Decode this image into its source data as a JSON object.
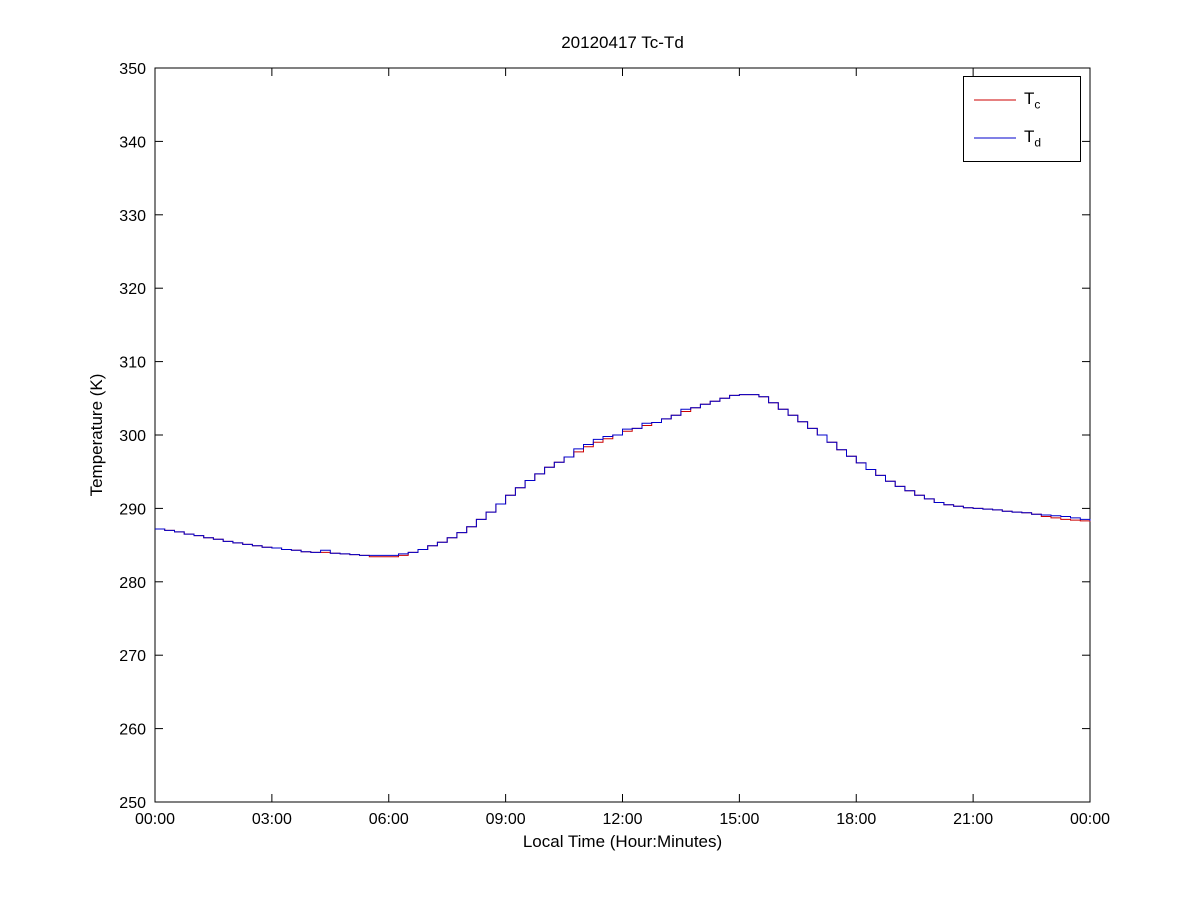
{
  "figure": {
    "title": "20120417 Tc-Td",
    "xlabel": "Local Time (Hour:Minutes)",
    "ylabel": "Temperature (K)"
  },
  "chart_data": {
    "type": "line",
    "title": "20120417 Tc-Td",
    "xlabel": "Local Time (Hour:Minutes)",
    "ylabel": "Temperature (K)",
    "xlim": [
      0,
      24
    ],
    "ylim": [
      250,
      350
    ],
    "grid": false,
    "legend_position": "top-right",
    "xtick_positions": [
      0,
      3,
      6,
      9,
      12,
      15,
      18,
      21,
      24
    ],
    "xtick_labels": [
      "00:00",
      "03:00",
      "06:00",
      "09:00",
      "12:00",
      "15:00",
      "18:00",
      "21:00",
      "00:00"
    ],
    "ytick_positions": [
      250,
      260,
      270,
      280,
      290,
      300,
      310,
      320,
      330,
      340,
      350
    ],
    "ytick_labels": [
      "250",
      "260",
      "270",
      "280",
      "290",
      "300",
      "310",
      "320",
      "330",
      "340",
      "350"
    ],
    "x_hours": [
      0,
      0.25,
      0.5,
      0.75,
      1,
      1.25,
      1.5,
      1.75,
      2,
      2.25,
      2.5,
      2.75,
      3,
      3.25,
      3.5,
      3.75,
      4,
      4.25,
      4.5,
      4.75,
      5,
      5.25,
      5.5,
      5.75,
      6,
      6.25,
      6.5,
      6.75,
      7,
      7.25,
      7.5,
      7.75,
      8,
      8.25,
      8.5,
      8.75,
      9,
      9.25,
      9.5,
      9.75,
      10,
      10.25,
      10.5,
      10.75,
      11,
      11.25,
      11.5,
      11.75,
      12,
      12.25,
      12.5,
      12.75,
      13,
      13.25,
      13.5,
      13.75,
      14,
      14.25,
      14.5,
      14.75,
      15,
      15.25,
      15.5,
      15.75,
      16,
      16.25,
      16.5,
      16.75,
      17,
      17.25,
      17.5,
      17.75,
      18,
      18.25,
      18.5,
      18.75,
      19,
      19.25,
      19.5,
      19.75,
      20,
      20.25,
      20.5,
      20.75,
      21,
      21.25,
      21.5,
      21.75,
      22,
      22.25,
      22.5,
      22.75,
      23,
      23.25,
      23.5,
      23.75,
      24
    ],
    "series": [
      {
        "name": "Tc",
        "label_main": "T",
        "label_sub": "c",
        "color": "#cc0000",
        "values": [
          287.2,
          287.0,
          286.8,
          286.5,
          286.3,
          286.0,
          285.8,
          285.5,
          285.3,
          285.1,
          284.9,
          284.7,
          284.6,
          284.4,
          284.3,
          284.1,
          284.0,
          284.0,
          283.9,
          283.8,
          283.7,
          283.6,
          283.4,
          283.4,
          283.4,
          283.6,
          284.0,
          284.4,
          284.9,
          285.4,
          286.0,
          286.7,
          287.5,
          288.5,
          289.5,
          290.6,
          291.8,
          292.8,
          293.8,
          294.7,
          295.6,
          296.3,
          297.0,
          297.7,
          298.4,
          299.0,
          299.5,
          300.0,
          300.5,
          300.9,
          301.3,
          301.7,
          302.2,
          302.7,
          303.2,
          303.7,
          304.2,
          304.6,
          305.0,
          305.4,
          305.5,
          305.5,
          305.2,
          304.4,
          303.5,
          302.7,
          301.8,
          300.9,
          300.0,
          299.0,
          298.0,
          297.1,
          296.2,
          295.3,
          294.5,
          293.7,
          293.0,
          292.4,
          291.8,
          291.3,
          290.8,
          290.5,
          290.3,
          290.1,
          290.0,
          289.9,
          289.8,
          289.6,
          289.5,
          289.4,
          289.2,
          288.9,
          288.7,
          288.5,
          288.4,
          288.3,
          288.2
        ]
      },
      {
        "name": "Td",
        "label_main": "T",
        "label_sub": "d",
        "color": "#0000cc",
        "values": [
          287.2,
          287.0,
          286.8,
          286.5,
          286.3,
          286.0,
          285.8,
          285.5,
          285.3,
          285.1,
          284.9,
          284.7,
          284.6,
          284.4,
          284.3,
          284.1,
          284.0,
          284.3,
          283.9,
          283.8,
          283.7,
          283.6,
          283.6,
          283.6,
          283.6,
          283.8,
          284.0,
          284.4,
          284.9,
          285.4,
          286.0,
          286.7,
          287.5,
          288.5,
          289.5,
          290.6,
          291.8,
          292.8,
          293.8,
          294.7,
          295.6,
          296.3,
          297.0,
          298.1,
          298.7,
          299.4,
          299.8,
          300.0,
          300.8,
          300.9,
          301.6,
          301.7,
          302.2,
          302.7,
          303.5,
          303.7,
          304.2,
          304.6,
          305.0,
          305.4,
          305.5,
          305.5,
          305.2,
          304.4,
          303.5,
          302.7,
          301.8,
          300.9,
          300.0,
          299.0,
          298.0,
          297.1,
          296.2,
          295.3,
          294.5,
          293.7,
          293.0,
          292.4,
          291.8,
          291.3,
          290.8,
          290.5,
          290.3,
          290.1,
          290.0,
          289.9,
          289.8,
          289.6,
          289.5,
          289.4,
          289.2,
          289.1,
          289.0,
          288.9,
          288.7,
          288.5,
          288.3
        ]
      }
    ]
  }
}
